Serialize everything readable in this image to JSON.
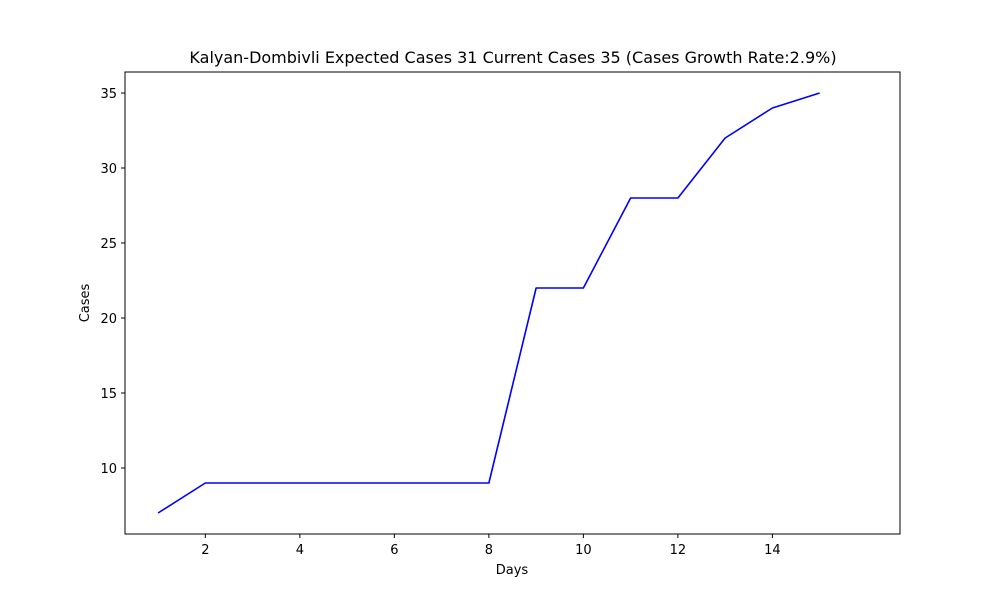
{
  "chart_data": {
    "type": "line",
    "title": "Kalyan-Dombivli Expected Cases 31 Current Cases 35 (Cases Growth Rate:2.9%)",
    "xlabel": "Days",
    "ylabel": "Cases",
    "x": [
      1,
      2,
      3,
      4,
      5,
      6,
      7,
      8,
      9,
      10,
      11,
      12,
      13,
      14,
      15
    ],
    "series": [
      {
        "values": [
          7,
          9,
          9,
          9,
          9,
          9,
          9,
          9,
          22,
          22,
          28,
          28,
          32,
          34,
          35
        ],
        "color": "#0000ff"
      }
    ],
    "xlim": [
      0.3,
      16.7
    ],
    "ylim": [
      5.6,
      36.4
    ],
    "xticks": [
      2,
      4,
      6,
      8,
      10,
      12,
      14
    ],
    "xtick_labels": [
      "2",
      "4",
      "6",
      "8",
      "10",
      "12",
      "14"
    ],
    "yticks": [
      10,
      15,
      20,
      25,
      30,
      35
    ],
    "ytick_labels": [
      "10",
      "15",
      "20",
      "25",
      "30",
      "35"
    ],
    "grid": false,
    "legend": "none"
  }
}
